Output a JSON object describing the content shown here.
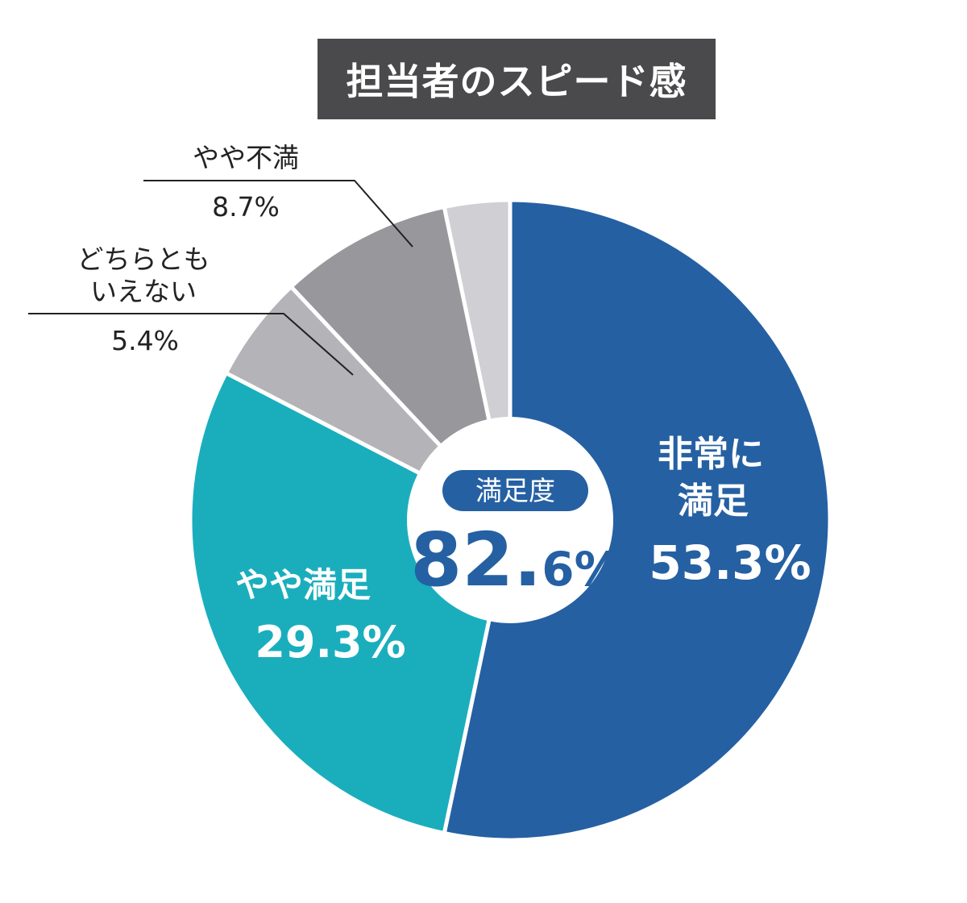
{
  "chart_data": {
    "type": "pie",
    "variant": "donut",
    "title": "担当者のスピード感",
    "slices": [
      {
        "label": "非常に満足",
        "label_lines": [
          "非常に",
          "満足"
        ],
        "value_text": "53.3%",
        "value": 53.3,
        "color": "#2560a3",
        "label_color": "#ffffff"
      },
      {
        "label": "やや満足",
        "label_lines": [
          "やや満足"
        ],
        "value_text": "29.3%",
        "value": 29.3,
        "color": "#1aaebd",
        "label_color": "#ffffff"
      },
      {
        "label": "どちらともいえない",
        "label_lines": [
          "どちらとも",
          "いえない"
        ],
        "value_text": "5.4%",
        "value": 5.4,
        "color": "#b4b3b8",
        "label_color": "#222222"
      },
      {
        "label": "やや不満",
        "label_lines": [
          "やや不満"
        ],
        "value_text": "8.7%",
        "value": 8.7,
        "color": "#98979b",
        "label_color": "#222222"
      },
      {
        "label": "",
        "label_lines": [],
        "value_text": "",
        "value": 3.3,
        "color": "#d0cfd3",
        "label_color": "#222222"
      }
    ],
    "center": {
      "badge": "満足度",
      "value_big": "82.",
      "value_small": "6%",
      "badge_color": "#2560a3",
      "value_color": "#2560a3"
    }
  }
}
